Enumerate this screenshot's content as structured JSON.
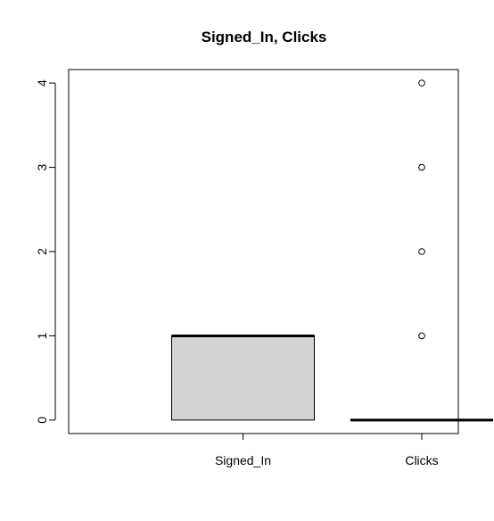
{
  "chart_data": {
    "type": "box",
    "title": "Signed_In, Clicks",
    "xlabel": "",
    "ylabel": "",
    "categories": [
      "Signed_In",
      "Clicks"
    ],
    "yticks": [
      0,
      1,
      2,
      3,
      4
    ],
    "ylim": [
      -0.16,
      4.16
    ],
    "boxes": [
      {
        "name": "Signed_In",
        "min": 0,
        "q1": 0,
        "median": 1,
        "q3": 1,
        "max": 1,
        "outliers": []
      },
      {
        "name": "Clicks",
        "min": 0,
        "q1": 0,
        "median": 0,
        "q3": 0,
        "max": 0,
        "outliers": [
          1,
          2,
          3,
          4
        ]
      }
    ],
    "grid": false,
    "legend": "none",
    "colors": {
      "box_fill": "#d3d3d3",
      "stroke": "#000000",
      "background": "#ffffff"
    }
  }
}
